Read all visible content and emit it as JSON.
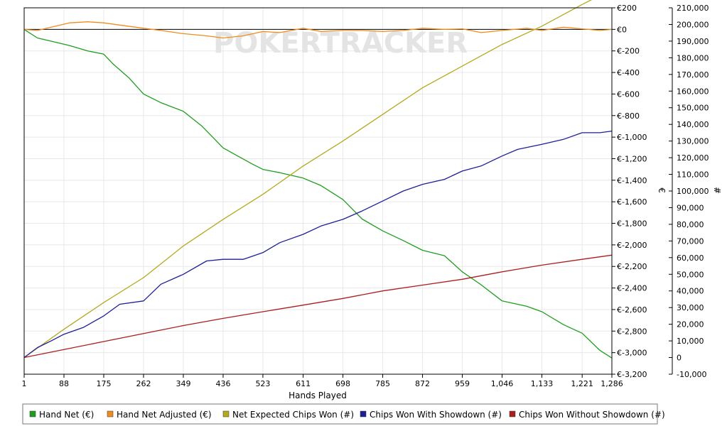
{
  "watermark": "POKERTRACKER",
  "chart_data": {
    "type": "line",
    "xlabel": "Hands Played",
    "y_left_label": "€",
    "y_right_label": "#",
    "x_ticks": [
      "1",
      "88",
      "175",
      "262",
      "349",
      "436",
      "523",
      "611",
      "698",
      "785",
      "872",
      "959",
      "1,046",
      "1,133",
      "1,221",
      "1,286"
    ],
    "x_tick_values": [
      1,
      88,
      175,
      262,
      349,
      436,
      523,
      611,
      698,
      785,
      872,
      959,
      1046,
      1133,
      1221,
      1286
    ],
    "xlim": [
      1,
      1286
    ],
    "y_left_ticks": [
      "€200",
      "€0",
      "€-200",
      "€-400",
      "€-600",
      "€-800",
      "€-1,000",
      "€-1,200",
      "€-1,400",
      "€-1,600",
      "€-1,800",
      "€-2,000",
      "€-2,200",
      "€-2,400",
      "€-2,600",
      "€-2,800",
      "€-3,000",
      "€-3,200"
    ],
    "y_left_tick_values": [
      200,
      0,
      -200,
      -400,
      -600,
      -800,
      -1000,
      -1200,
      -1400,
      -1600,
      -1800,
      -2000,
      -2200,
      -2400,
      -2600,
      -2800,
      -3000,
      -3200
    ],
    "ylim_left": [
      -3200,
      200
    ],
    "y_right_ticks": [
      "210,000",
      "200,000",
      "190,000",
      "180,000",
      "170,000",
      "160,000",
      "150,000",
      "140,000",
      "130,000",
      "120,000",
      "110,000",
      "100,000",
      "90,000",
      "80,000",
      "70,000",
      "60,000",
      "50,000",
      "40,000",
      "30,000",
      "20,000",
      "10,000",
      "0",
      "-10,000"
    ],
    "y_right_tick_values": [
      210000,
      200000,
      190000,
      180000,
      170000,
      160000,
      150000,
      140000,
      130000,
      120000,
      110000,
      100000,
      90000,
      80000,
      70000,
      60000,
      50000,
      40000,
      30000,
      20000,
      10000,
      0,
      -10000
    ],
    "ylim_right": [
      -10000,
      210000
    ],
    "grid": true,
    "legend_position": "bottom",
    "series": [
      {
        "name": "Hand Net (€)",
        "axis": "left",
        "color": "#1e9e1e",
        "x": [
          1,
          30,
          60,
          100,
          140,
          175,
          195,
          230,
          262,
          300,
          349,
          390,
          436,
          470,
          500,
          523,
          560,
          611,
          650,
          698,
          740,
          785,
          830,
          872,
          920,
          959,
          1000,
          1046,
          1100,
          1133,
          1180,
          1221,
          1260,
          1286
        ],
        "y": [
          0,
          -80,
          -110,
          -150,
          -200,
          -230,
          -320,
          -450,
          -600,
          -680,
          -760,
          -900,
          -1100,
          -1180,
          -1250,
          -1300,
          -1330,
          -1380,
          -1450,
          -1580,
          -1760,
          -1870,
          -1960,
          -2050,
          -2100,
          -2250,
          -2370,
          -2520,
          -2570,
          -2620,
          -2740,
          -2820,
          -2980,
          -3050
        ]
      },
      {
        "name": "Hand Net Adjusted (€)",
        "axis": "left",
        "color": "#f08c1e",
        "x": [
          1,
          30,
          60,
          100,
          140,
          175,
          210,
          262,
          300,
          349,
          400,
          436,
          480,
          523,
          560,
          611,
          650,
          698,
          740,
          785,
          830,
          872,
          920,
          959,
          1000,
          1046,
          1100,
          1133,
          1180,
          1221,
          1260,
          1286
        ],
        "y": [
          0,
          -10,
          20,
          60,
          70,
          60,
          40,
          10,
          -10,
          -40,
          -60,
          -80,
          -60,
          -20,
          -30,
          10,
          -20,
          -10,
          -10,
          -20,
          -10,
          10,
          0,
          5,
          -30,
          -10,
          10,
          -10,
          20,
          5,
          -10,
          0
        ]
      },
      {
        "name": "Net Expected Chips Won (#)",
        "axis": "right",
        "color": "#b4aa1e",
        "x": [
          1,
          88,
          175,
          262,
          349,
          436,
          523,
          611,
          698,
          785,
          872,
          959,
          1046,
          1133,
          1221,
          1286
        ],
        "y": [
          0,
          17000,
          33000,
          48000,
          67000,
          83000,
          98000,
          115000,
          130000,
          146000,
          162000,
          175000,
          188000,
          199000,
          212000,
          221000
        ]
      },
      {
        "name": "Chips Won With Showdown (#)",
        "axis": "right",
        "color": "#1e1e96",
        "x": [
          1,
          30,
          60,
          88,
          130,
          175,
          210,
          262,
          300,
          349,
          400,
          436,
          480,
          523,
          560,
          611,
          650,
          698,
          740,
          785,
          830,
          872,
          920,
          959,
          1000,
          1046,
          1080,
          1133,
          1180,
          1221,
          1260,
          1286
        ],
        "y": [
          0,
          6000,
          10000,
          14000,
          18000,
          25000,
          32000,
          34000,
          44000,
          50000,
          58000,
          59000,
          59000,
          63000,
          69000,
          74000,
          79000,
          83000,
          88000,
          94000,
          100000,
          104000,
          107000,
          112000,
          115000,
          121000,
          125000,
          128000,
          131000,
          135000,
          135000,
          136000
        ]
      },
      {
        "name": "Chips Won Without Showdown (#)",
        "axis": "right",
        "color": "#aa1e1e",
        "x": [
          1,
          88,
          175,
          262,
          349,
          436,
          523,
          611,
          698,
          785,
          872,
          959,
          1046,
          1133,
          1221,
          1286
        ],
        "y": [
          0,
          4800,
          9600,
          14400,
          19200,
          23500,
          27500,
          31500,
          35500,
          40000,
          43500,
          47000,
          51500,
          55500,
          59000,
          61500
        ]
      }
    ]
  }
}
